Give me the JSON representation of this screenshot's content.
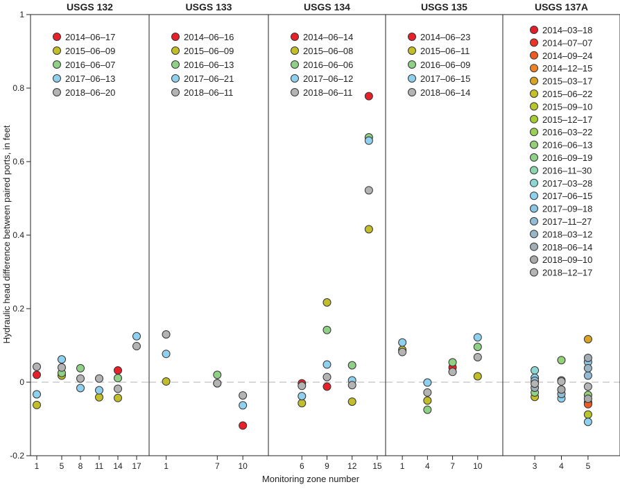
{
  "chart_data": {
    "type": "scatter",
    "ylabel": "Hydraulic head difference between paired ports, in feet",
    "xlabel": "Monitoring zone number",
    "ylim": [
      -0.2,
      1.0
    ],
    "yticks": [
      -0.2,
      0,
      0.2,
      0.4,
      0.6,
      0.8,
      1
    ],
    "ytick_labels": [
      "-0.2",
      "0",
      "0.2",
      "0.4",
      "0.6",
      "0.8",
      "1"
    ],
    "zero_line": "dashed",
    "panels": [
      {
        "title": "USGS 132",
        "xlim": [
          0,
          19
        ],
        "xticks": [
          1,
          5,
          8,
          11,
          14,
          17
        ],
        "legend": [
          {
            "label": "2014–06–17",
            "color": "#e8202a"
          },
          {
            "label": "2015–06–09",
            "color": "#c2be2a"
          },
          {
            "label": "2016–06–07",
            "color": "#8fcf86"
          },
          {
            "label": "2017–06–13",
            "color": "#8fd0ee"
          },
          {
            "label": "2018–06–20",
            "color": "#b3b3b3"
          }
        ],
        "series": [
          {
            "date": "2014–06–17",
            "points": [
              [
                1,
                0.02
              ],
              [
                14,
                0.032
              ]
            ]
          },
          {
            "date": "2015–06–09",
            "points": [
              [
                1,
                -0.062
              ],
              [
                5,
                0.018
              ],
              [
                11,
                -0.041
              ],
              [
                14,
                -0.043
              ]
            ]
          },
          {
            "date": "2016–06–07",
            "points": [
              [
                5,
                0.025
              ],
              [
                8,
                0.038
              ],
              [
                14,
                0.011
              ]
            ]
          },
          {
            "date": "2017–06–13",
            "points": [
              [
                1,
                -0.033
              ],
              [
                5,
                0.062
              ],
              [
                8,
                -0.016
              ],
              [
                11,
                -0.022
              ],
              [
                17,
                0.125
              ]
            ]
          },
          {
            "date": "2018–06–20",
            "points": [
              [
                1,
                0.042
              ],
              [
                5,
                0.04
              ],
              [
                8,
                0.01
              ],
              [
                11,
                0.01
              ],
              [
                14,
                -0.018
              ],
              [
                17,
                0.098
              ]
            ]
          }
        ]
      },
      {
        "title": "USGS 133",
        "xlim": [
          -1,
          13
        ],
        "xticks": [
          1,
          7,
          10
        ],
        "legend": [
          {
            "label": "2014–06–16",
            "color": "#e8202a"
          },
          {
            "label": "2015–06–09",
            "color": "#c2be2a"
          },
          {
            "label": "2016–06–13",
            "color": "#8fcf86"
          },
          {
            "label": "2017–06–21",
            "color": "#8fd0ee"
          },
          {
            "label": "2018–06–11",
            "color": "#b3b3b3"
          }
        ],
        "series": [
          {
            "date": "2014–06–16",
            "points": [
              [
                10,
                -0.118
              ]
            ]
          },
          {
            "date": "2015–06–09",
            "points": [
              [
                1,
                0.002
              ],
              [
                7,
                -0.003
              ]
            ]
          },
          {
            "date": "2016–06–13",
            "points": [
              [
                7,
                0.02
              ]
            ]
          },
          {
            "date": "2017–06–21",
            "points": [
              [
                1,
                0.077
              ],
              [
                10,
                -0.063
              ]
            ]
          },
          {
            "date": "2018–06–11",
            "points": [
              [
                1,
                0.13
              ],
              [
                7,
                -0.003
              ],
              [
                10,
                -0.036
              ]
            ]
          }
        ]
      },
      {
        "title": "USGS 134",
        "xlim": [
          2,
          16
        ],
        "xticks": [
          6,
          9,
          12,
          15
        ],
        "legend": [
          {
            "label": "2014–06–14",
            "color": "#e8202a"
          },
          {
            "label": "2015–06–08",
            "color": "#c2be2a"
          },
          {
            "label": "2016–06–06",
            "color": "#8fcf86"
          },
          {
            "label": "2017–06–12",
            "color": "#8fd0ee"
          },
          {
            "label": "2018–06–11",
            "color": "#b3b3b3"
          }
        ],
        "series": [
          {
            "date": "2014–06–14",
            "points": [
              [
                6,
                -0.003
              ],
              [
                9,
                -0.012
              ],
              [
                14,
                0.778
              ]
            ]
          },
          {
            "date": "2015–06–08",
            "points": [
              [
                6,
                -0.057
              ],
              [
                9,
                0.217
              ],
              [
                12,
                -0.053
              ],
              [
                14,
                0.416
              ]
            ]
          },
          {
            "date": "2016–06–06",
            "points": [
              [
                9,
                0.142
              ],
              [
                12,
                0.046
              ],
              [
                14,
                0.666
              ]
            ]
          },
          {
            "date": "2017–06–12",
            "points": [
              [
                6,
                -0.038
              ],
              [
                9,
                0.048
              ],
              [
                12,
                0.005
              ],
              [
                14,
                0.657
              ]
            ]
          },
          {
            "date": "2018–06–11",
            "points": [
              [
                6,
                -0.01
              ],
              [
                9,
                0.014
              ],
              [
                12,
                -0.008
              ],
              [
                14,
                0.522
              ]
            ]
          }
        ]
      },
      {
        "title": "USGS 135",
        "xlim": [
          -1,
          13
        ],
        "xticks": [
          1,
          4,
          7,
          10
        ],
        "legend": [
          {
            "label": "2014–06–23",
            "color": "#e8202a"
          },
          {
            "label": "2015–06–11",
            "color": "#c2be2a"
          },
          {
            "label": "2016–06–09",
            "color": "#8fcf86"
          },
          {
            "label": "2017–06–15",
            "color": "#8fd0ee"
          },
          {
            "label": "2018–06–14",
            "color": "#b3b3b3"
          }
        ],
        "series": [
          {
            "date": "2014–06–23",
            "points": [
              [
                7,
                0.04
              ]
            ]
          },
          {
            "date": "2015–06–11",
            "points": [
              [
                1,
                0.088
              ],
              [
                4,
                -0.05
              ],
              [
                10,
                0.016
              ]
            ]
          },
          {
            "date": "2016–06–09",
            "points": [
              [
                4,
                -0.075
              ],
              [
                7,
                0.054
              ],
              [
                10,
                0.096
              ]
            ]
          },
          {
            "date": "2017–06–15",
            "points": [
              [
                1,
                0.108
              ],
              [
                4,
                -0.001
              ],
              [
                10,
                0.122
              ]
            ]
          },
          {
            "date": "2018–06–14",
            "points": [
              [
                1,
                0.082
              ],
              [
                4,
                -0.028
              ],
              [
                7,
                0.028
              ],
              [
                10,
                0.068
              ]
            ]
          }
        ]
      },
      {
        "title": "USGS 137A",
        "xlim": [
          1.8,
          6.2
        ],
        "xticks": [
          3,
          4,
          5
        ],
        "legend": [
          {
            "label": "2014–03–18",
            "color": "#e3202a"
          },
          {
            "label": "2014–07–07",
            "color": "#e93427"
          },
          {
            "label": "2014–09–24",
            "color": "#ee5a23"
          },
          {
            "label": "2014–12–15",
            "color": "#ef8127"
          },
          {
            "label": "2015–03–17",
            "color": "#d9a326"
          },
          {
            "label": "2015–06–22",
            "color": "#c5bf2a"
          },
          {
            "label": "2015–09–10",
            "color": "#b8c62c"
          },
          {
            "label": "2015–12–17",
            "color": "#a5cd33"
          },
          {
            "label": "2016–03–22",
            "color": "#9bcf55"
          },
          {
            "label": "2016–06–13",
            "color": "#93d077"
          },
          {
            "label": "2016–09–19",
            "color": "#8ed189"
          },
          {
            "label": "2016–11–30",
            "color": "#8cd5ad"
          },
          {
            "label": "2017–03–28",
            "color": "#8dd7d2"
          },
          {
            "label": "2017–06–15",
            "color": "#8dd1ee"
          },
          {
            "label": "2017–09–18",
            "color": "#8dc6e2"
          },
          {
            "label": "2017–11–27",
            "color": "#92bcd6"
          },
          {
            "label": "2018–03–12",
            "color": "#9ab5c6"
          },
          {
            "label": "2018–06–14",
            "color": "#a0adb6"
          },
          {
            "label": "2018–09–10",
            "color": "#a7a9ab"
          },
          {
            "label": "2018–12–17",
            "color": "#b5b5b5"
          }
        ],
        "series": [
          {
            "date": "2014–03–18",
            "points": [
              [
                5,
                -0.055
              ]
            ]
          },
          {
            "date": "2014–09–24",
            "points": [
              [
                5,
                -0.06
              ]
            ]
          },
          {
            "date": "2015–03–17",
            "points": [
              [
                5,
                0.117
              ]
            ]
          },
          {
            "date": "2015–06–22",
            "points": [
              [
                3,
                -0.04
              ]
            ]
          },
          {
            "date": "2015–09–10",
            "points": [
              [
                5,
                -0.088
              ]
            ]
          },
          {
            "date": "2016–06–13",
            "points": [
              [
                4,
                0.06
              ],
              [
                5,
                -0.035
              ]
            ]
          },
          {
            "date": "2016–09–19",
            "points": [
              [
                3,
                -0.028
              ]
            ]
          },
          {
            "date": "2017–03–28",
            "points": [
              [
                3,
                0.032
              ]
            ]
          },
          {
            "date": "2017–06–15",
            "points": [
              [
                3,
                0.012
              ],
              [
                4,
                -0.044
              ],
              [
                5,
                -0.108
              ]
            ]
          },
          {
            "date": "2017–09–18",
            "points": [
              [
                5,
                0.055
              ]
            ]
          },
          {
            "date": "2017–11–27",
            "points": [
              [
                3,
                0.004
              ],
              [
                4,
                -0.032
              ],
              [
                5,
                0.018
              ]
            ]
          },
          {
            "date": "2018–03–12",
            "points": [
              [
                5,
                0.038
              ]
            ]
          },
          {
            "date": "2018–06–14",
            "points": [
              [
                3,
                -0.015
              ],
              [
                4,
                0.005
              ],
              [
                5,
                0.066
              ]
            ]
          },
          {
            "date": "2018–09–10",
            "points": [
              [
                4,
                -0.02
              ],
              [
                5,
                -0.045
              ]
            ]
          },
          {
            "date": "2018–12–17",
            "points": [
              [
                3,
                -0.004
              ],
              [
                4,
                0.002
              ],
              [
                5,
                -0.012
              ]
            ]
          }
        ]
      }
    ]
  }
}
